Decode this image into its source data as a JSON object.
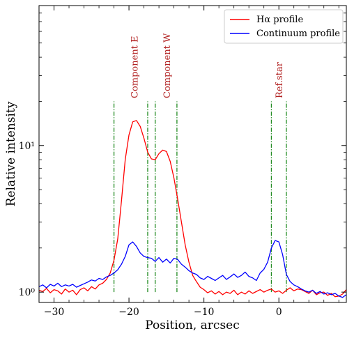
{
  "chart_data": {
    "type": "line",
    "title": "",
    "xlabel": "Position, arcsec",
    "ylabel": "Relative intensity",
    "xlim": [
      -32,
      9
    ],
    "ylim": [
      0.85,
      90
    ],
    "yscale": "log",
    "xticks": [
      -30,
      -20,
      -10,
      0
    ],
    "xtick_labels": [
      "−30",
      "−20",
      "−10",
      "0"
    ],
    "yticks_major": [
      1,
      10
    ],
    "ytick_labels": [
      "10⁰",
      "10¹"
    ],
    "grid": false,
    "legend_position": "upper right",
    "colors": {
      "halpha": "#ff0000",
      "continuum": "#0000ff",
      "markers": "#228B22",
      "annotations": "#b22222"
    },
    "series": [
      {
        "name": "Hα profile",
        "color": "#ff0000",
        "x": [
          -32,
          -31.5,
          -31,
          -30.5,
          -30,
          -29.5,
          -29,
          -28.5,
          -28,
          -27.5,
          -27,
          -26.5,
          -26,
          -25.5,
          -25,
          -24.5,
          -24,
          -23.5,
          -23,
          -22.5,
          -22,
          -21.5,
          -21,
          -20.5,
          -20,
          -19.5,
          -19,
          -18.5,
          -18,
          -17.5,
          -17,
          -16.5,
          -16,
          -15.5,
          -15,
          -14.5,
          -14,
          -13.5,
          -13,
          -12.5,
          -12,
          -11.5,
          -11,
          -10.5,
          -10,
          -9.5,
          -9,
          -8.5,
          -8,
          -7.5,
          -7,
          -6.5,
          -6,
          -5.5,
          -5,
          -4.5,
          -4,
          -3.5,
          -3,
          -2.5,
          -2,
          -1.5,
          -1,
          -0.5,
          0,
          0.5,
          1,
          1.5,
          2,
          2.5,
          3,
          3.5,
          4,
          4.5,
          5,
          5.5,
          6,
          6.5,
          7,
          7.5,
          8,
          8.5,
          9
        ],
        "y": [
          1.03,
          1.01,
          1.06,
          0.99,
          1.04,
          1.02,
          0.97,
          1.05,
          1.0,
          1.03,
          0.96,
          1.04,
          1.07,
          1.02,
          1.09,
          1.05,
          1.12,
          1.15,
          1.22,
          1.35,
          1.65,
          2.3,
          4.2,
          8.0,
          11.8,
          14.5,
          14.8,
          13.5,
          11.2,
          9.0,
          8.1,
          8.0,
          8.8,
          9.3,
          9.1,
          7.8,
          6.0,
          4.3,
          3.0,
          2.1,
          1.6,
          1.3,
          1.18,
          1.08,
          1.04,
          0.99,
          1.02,
          0.97,
          1.01,
          0.96,
          1.0,
          0.98,
          1.03,
          0.96,
          1.0,
          0.97,
          1.02,
          0.98,
          1.01,
          1.04,
          1.0,
          1.03,
          1.05,
          1.0,
          1.02,
          0.98,
          1.03,
          1.07,
          1.02,
          1.05,
          1.04,
          1.01,
          0.98,
          1.03,
          0.96,
          0.99,
          1.0,
          0.95,
          0.98,
          0.93,
          0.94,
          0.97,
          1.04
        ]
      },
      {
        "name": "Continuum profile",
        "color": "#0000ff",
        "x": [
          -32,
          -31.5,
          -31,
          -30.5,
          -30,
          -29.5,
          -29,
          -28.5,
          -28,
          -27.5,
          -27,
          -26.5,
          -26,
          -25.5,
          -25,
          -24.5,
          -24,
          -23.5,
          -23,
          -22.5,
          -22,
          -21.5,
          -21,
          -20.5,
          -20,
          -19.5,
          -19,
          -18.5,
          -18,
          -17.5,
          -17,
          -16.5,
          -16,
          -15.5,
          -15,
          -14.5,
          -14,
          -13.5,
          -13,
          -12.5,
          -12,
          -11.5,
          -11,
          -10.5,
          -10,
          -9.5,
          -9,
          -8.5,
          -8,
          -7.5,
          -7,
          -6.5,
          -6,
          -5.5,
          -5,
          -4.5,
          -4,
          -3.5,
          -3,
          -2.5,
          -2,
          -1.5,
          -1,
          -0.5,
          0,
          0.5,
          1,
          1.5,
          2,
          2.5,
          3,
          3.5,
          4,
          4.5,
          5,
          5.5,
          6,
          6.5,
          7,
          7.5,
          8,
          8.5,
          9
        ],
        "y": [
          1.09,
          1.12,
          1.07,
          1.13,
          1.1,
          1.15,
          1.09,
          1.12,
          1.1,
          1.13,
          1.08,
          1.11,
          1.14,
          1.17,
          1.21,
          1.19,
          1.24,
          1.22,
          1.27,
          1.3,
          1.35,
          1.42,
          1.55,
          1.75,
          2.1,
          2.2,
          2.05,
          1.85,
          1.75,
          1.72,
          1.7,
          1.62,
          1.72,
          1.6,
          1.68,
          1.58,
          1.7,
          1.67,
          1.55,
          1.48,
          1.4,
          1.35,
          1.32,
          1.25,
          1.22,
          1.28,
          1.24,
          1.2,
          1.25,
          1.3,
          1.22,
          1.27,
          1.33,
          1.26,
          1.3,
          1.37,
          1.28,
          1.25,
          1.2,
          1.35,
          1.43,
          1.6,
          2.0,
          2.25,
          2.2,
          1.8,
          1.32,
          1.18,
          1.12,
          1.09,
          1.05,
          1.02,
          1.0,
          1.03,
          0.98,
          1.01,
          0.97,
          0.99,
          0.96,
          0.98,
          0.94,
          0.92,
          0.96
        ]
      }
    ],
    "markers": {
      "color": "#228B22",
      "ymin": 1.0,
      "ymax": 20,
      "x": [
        -22,
        -17.5,
        -16.5,
        -13.6,
        -1.0,
        1.0
      ]
    },
    "annotations": [
      {
        "text": "Component E",
        "x": -19.3,
        "y": 21
      },
      {
        "text": "Component W",
        "x": -15.0,
        "y": 21
      },
      {
        "text": "Ref.star",
        "x": 0.0,
        "y": 21
      }
    ]
  }
}
